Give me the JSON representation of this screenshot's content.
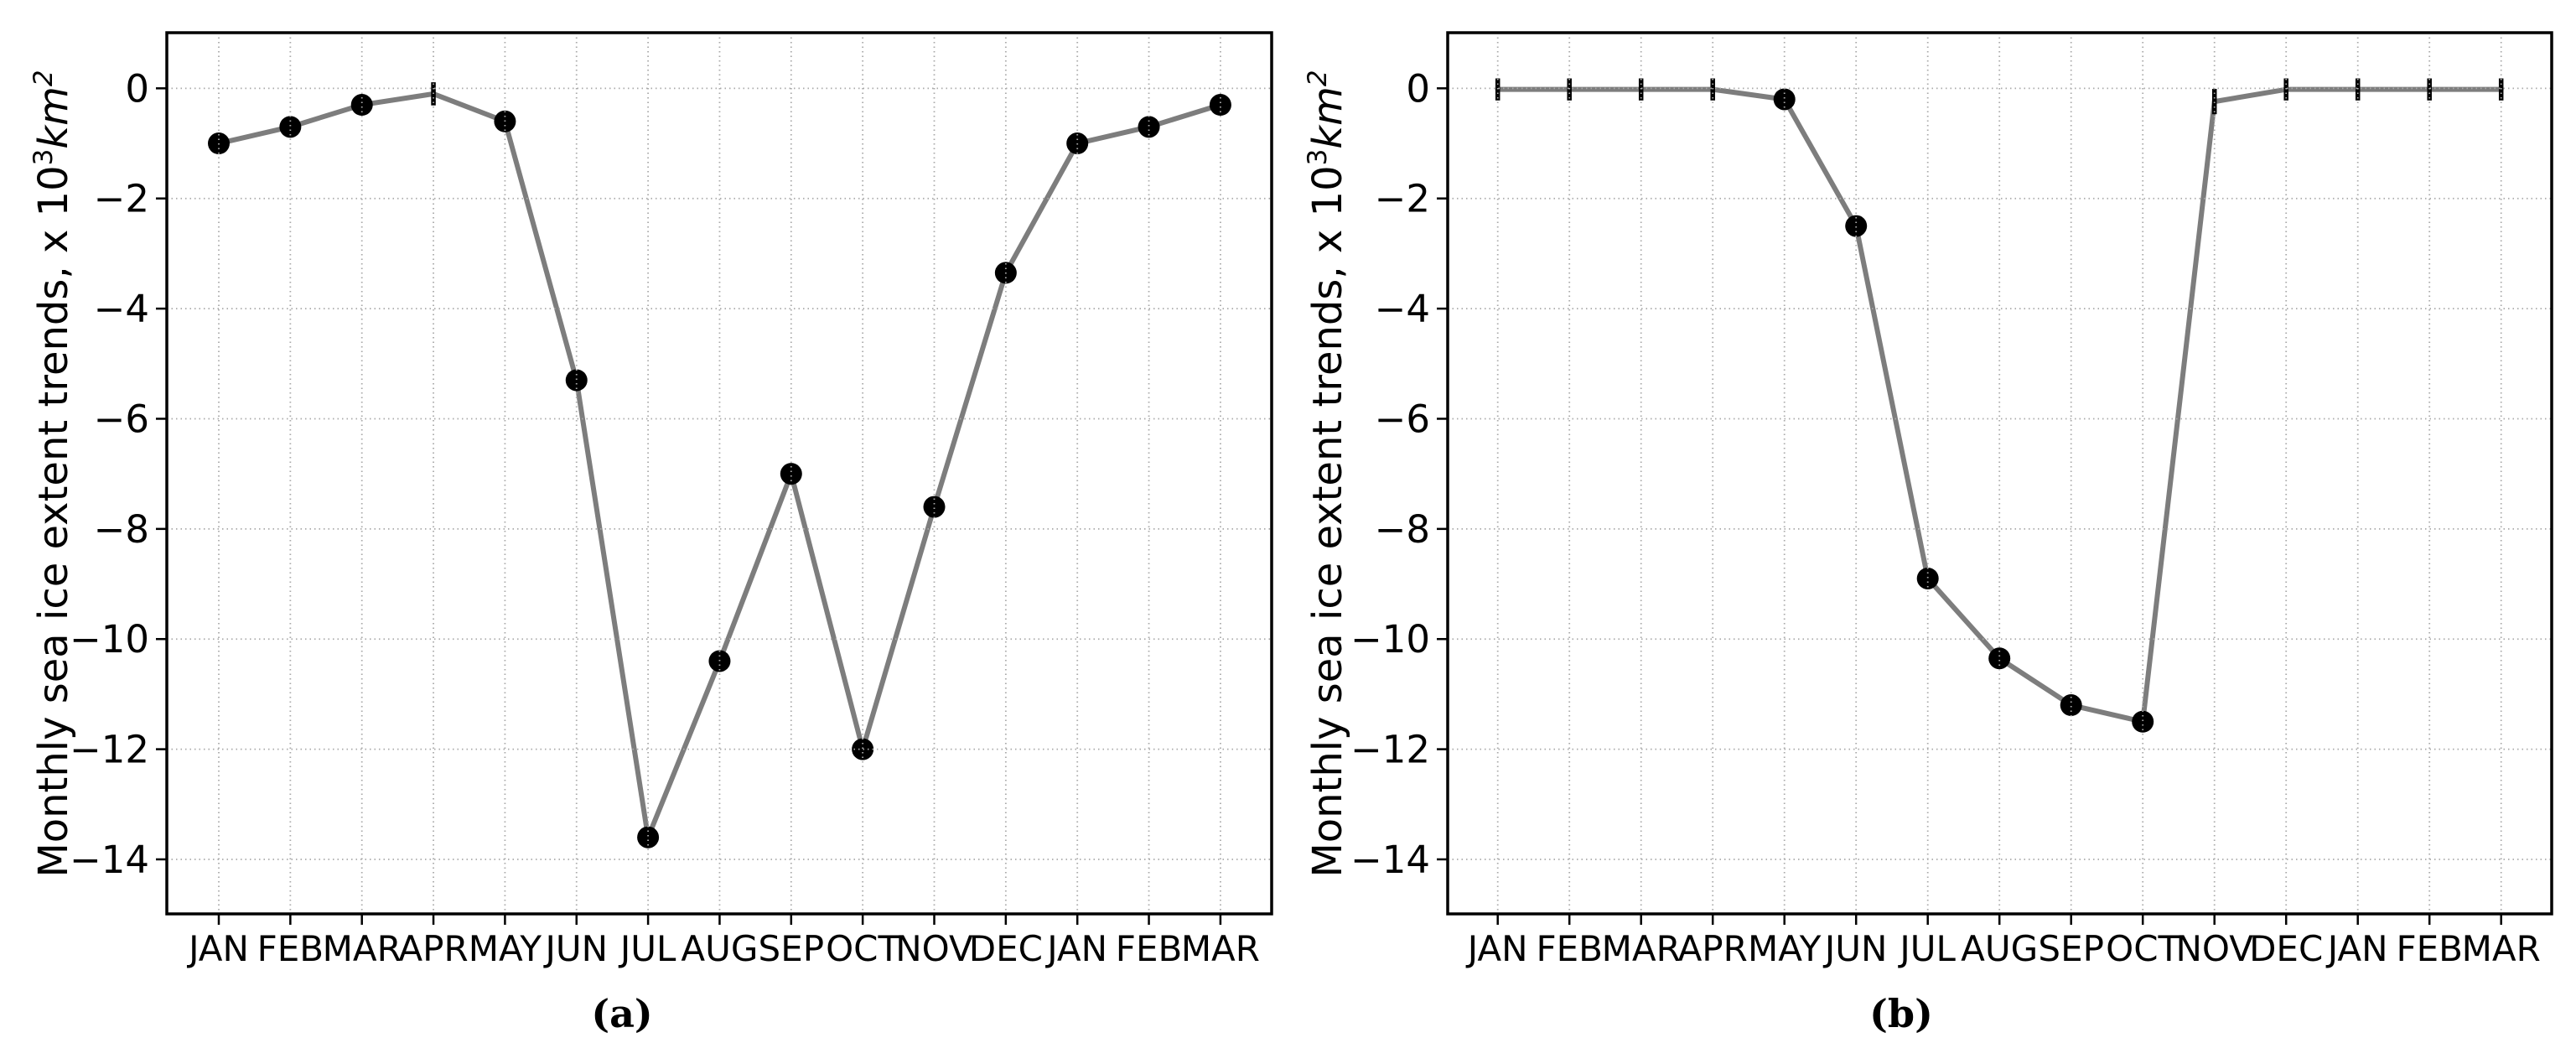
{
  "figure": {
    "background": "#ffffff",
    "grid_color": "#a9a9a9",
    "spine_color": "#000000",
    "tick_label_color": "#000000"
  },
  "chart_data": [
    {
      "type": "line",
      "panel_label": "(a)",
      "title": "",
      "xlabel": "",
      "ylabel": "Monthly sea ice extent trends, x 10³km²",
      "ylabel_parts": {
        "prefix": "Monthly sea ice extent trends, x 10",
        "exponent": "3",
        "unit": "km",
        "unit_exponent": "2"
      },
      "categories": [
        "JAN",
        "FEB",
        "MAR",
        "APR",
        "MAY",
        "JUN",
        "JUL",
        "AUG",
        "SEP",
        "OCT",
        "NOV",
        "DEC",
        "JAN",
        "FEB",
        "MAR"
      ],
      "values": [
        -1.0,
        -0.7,
        -0.3,
        -0.1,
        -0.6,
        -5.3,
        -13.6,
        -10.4,
        -7.0,
        -12.0,
        -7.6,
        -3.35,
        -1.0,
        -0.7,
        -0.3
      ],
      "markers": [
        "circle",
        "circle",
        "circle",
        "errorbar",
        "circle",
        "circle",
        "circle",
        "circle",
        "circle",
        "circle",
        "circle",
        "circle",
        "circle",
        "circle",
        "circle"
      ],
      "yerr": [
        null,
        null,
        null,
        0.21,
        null,
        null,
        null,
        null,
        null,
        null,
        null,
        null,
        null,
        null,
        null
      ],
      "ylim": [
        -14.99,
        1.01
      ],
      "yticks": [
        0,
        -2,
        -4,
        -6,
        -8,
        -10,
        -12,
        -14
      ],
      "grid": "dotted",
      "legend": "none",
      "line_color": "#7d7d7d",
      "marker_color": "#000000"
    },
    {
      "type": "line",
      "panel_label": "(b)",
      "title": "",
      "xlabel": "",
      "ylabel": "Monthly sea ice extent trends, x 10³km²",
      "ylabel_parts": {
        "prefix": "Monthly sea ice extent trends, x 10",
        "exponent": "3",
        "unit": "km",
        "unit_exponent": "2"
      },
      "categories": [
        "JAN",
        "FEB",
        "MAR",
        "APR",
        "MAY",
        "JUN",
        "JUL",
        "AUG",
        "SEP",
        "OCT",
        "NOV",
        "DEC",
        "JAN",
        "FEB",
        "MAR"
      ],
      "values": [
        -0.02,
        -0.02,
        -0.02,
        -0.02,
        -0.2,
        -2.5,
        -8.9,
        -10.35,
        -11.2,
        -11.5,
        -0.24,
        -0.02,
        -0.02,
        -0.02,
        -0.02
      ],
      "markers": [
        "errorbar",
        "errorbar",
        "errorbar",
        "errorbar",
        "circle",
        "circle",
        "circle",
        "circle",
        "circle",
        "circle",
        "errorbar",
        "errorbar",
        "errorbar",
        "errorbar",
        "errorbar"
      ],
      "yerr": [
        0.2,
        0.2,
        0.2,
        0.2,
        null,
        null,
        null,
        null,
        null,
        null,
        0.23,
        0.2,
        0.2,
        0.2,
        0.2
      ],
      "ylim": [
        -14.99,
        1.01
      ],
      "yticks": [
        0,
        -2,
        -4,
        -6,
        -8,
        -10,
        -12,
        -14
      ],
      "grid": "dotted",
      "legend": "none",
      "line_color": "#7d7d7d",
      "marker_color": "#000000"
    }
  ]
}
